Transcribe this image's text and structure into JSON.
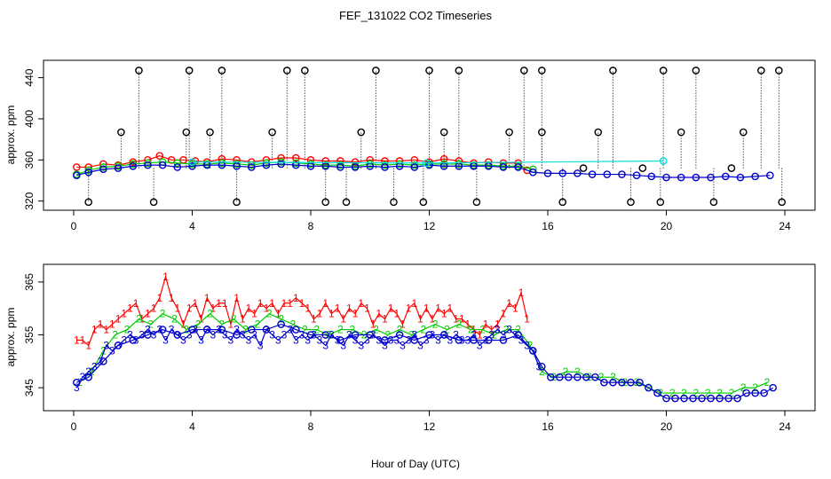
{
  "chart_data": [
    {
      "type": "scatter",
      "title": "FEF_131022  CO2 Timeseries",
      "xlabel": "",
      "ylabel": "approx. ppm",
      "xlim": [
        0,
        24
      ],
      "ylim": [
        318,
        450
      ],
      "x_ticks": [
        0,
        4,
        8,
        12,
        16,
        20,
        24
      ],
      "y_ticks": [
        320,
        360,
        400,
        440
      ],
      "series": [
        {
          "color": "#ff0000",
          "symbol": "circle",
          "x": [
            0.1,
            0.5,
            1,
            1.5,
            2,
            2.5,
            2.9,
            3.3,
            3.7,
            4.1,
            4.5,
            5,
            5.5,
            6,
            6.5,
            7,
            7.5,
            8,
            8.5,
            9,
            9.5,
            10,
            10.5,
            11,
            11.5,
            12,
            12.5,
            13,
            13.5,
            14,
            14.5,
            15,
            15.3
          ],
          "y": [
            353,
            353,
            356,
            355,
            358,
            360,
            364,
            360,
            360,
            359,
            358,
            361,
            360,
            358,
            360,
            362,
            362,
            360,
            359,
            359,
            358,
            360,
            359,
            359,
            360,
            358,
            361,
            359,
            357,
            358,
            357,
            357,
            350
          ]
        },
        {
          "color": "#00cc00",
          "symbol": "circle",
          "x": [
            0.1,
            0.5,
            1,
            1.5,
            2,
            2.5,
            3,
            3.5,
            4,
            4.5,
            5,
            5.5,
            6,
            6.5,
            7,
            7.5,
            8,
            8.5,
            9,
            9.5,
            10,
            10.5,
            11,
            11.5,
            12,
            12.5,
            13,
            13.5,
            14,
            14.5,
            15,
            15.5
          ],
          "y": [
            346,
            350,
            353,
            354,
            356,
            357,
            358,
            357,
            356,
            356,
            357,
            356,
            355,
            357,
            358,
            357,
            356,
            355,
            355,
            354,
            356,
            355,
            356,
            355,
            356,
            356,
            356,
            355,
            355,
            354,
            354,
            351
          ]
        },
        {
          "color": "#0000cc",
          "symbol": "circle",
          "x": [
            0.1,
            0.5,
            1,
            1.5,
            2,
            2.5,
            3,
            3.5,
            4,
            4.5,
            5,
            5.5,
            6,
            6.5,
            7,
            7.5,
            8,
            8.5,
            9,
            9.5,
            10,
            10.5,
            11,
            11.5,
            12,
            12.5,
            13,
            13.5,
            14,
            14.5,
            15,
            15.5,
            16,
            16.5,
            17,
            17.5,
            18,
            18.5,
            19,
            19.5,
            20,
            20.5,
            21,
            21.5,
            22,
            22.5,
            23,
            23.5
          ],
          "y": [
            345,
            348,
            351,
            352,
            354,
            355,
            355,
            353,
            354,
            355,
            355,
            354,
            353,
            355,
            356,
            355,
            354,
            354,
            353,
            353,
            354,
            353,
            354,
            353,
            355,
            354,
            354,
            354,
            354,
            353,
            353,
            348,
            347,
            347,
            347,
            346,
            346,
            346,
            345,
            344,
            343,
            343,
            343,
            343,
            344,
            343,
            344,
            345
          ]
        },
        {
          "color": "#00e0e0",
          "symbol": "circle",
          "x": [
            4,
            11.9,
            19.9
          ],
          "y": [
            358,
            357,
            359
          ]
        },
        {
          "color": "#000000",
          "symbol": "circle",
          "x": [
            0.5,
            1.6,
            2.2,
            2.7,
            3.8,
            3.9,
            4.6,
            5.0,
            5.5,
            6.7,
            7.2,
            7.8,
            8.5,
            9.2,
            9.7,
            10.2,
            10.8,
            11.8,
            12.0,
            12.5,
            13.0,
            13.6,
            14.7,
            15.2,
            15.8,
            15.8,
            16.5,
            17.2,
            17.7,
            18.2,
            18.8,
            19.2,
            19.8,
            19.9,
            20.5,
            21.0,
            21.6,
            22.2,
            22.6,
            23.2,
            23.8,
            23.9
          ],
          "y": [
            319,
            387,
            447,
            319,
            387,
            447,
            387,
            447,
            319,
            387,
            447,
            447,
            319,
            319,
            387,
            447,
            319,
            319,
            447,
            387,
            447,
            319,
            387,
            447,
            447,
            387,
            319,
            352,
            387,
            447,
            319,
            352,
            319,
            447,
            387,
            447,
            319,
            352,
            387,
            447,
            447,
            319
          ]
        }
      ]
    },
    {
      "type": "scatter",
      "title": "",
      "xlabel": "Hour of Day (UTC)",
      "ylabel": "approx. ppm",
      "xlim": [
        0,
        24
      ],
      "ylim": [
        342,
        367
      ],
      "x_ticks": [
        0,
        4,
        8,
        12,
        16,
        20,
        24
      ],
      "y_ticks": [
        345,
        355,
        365
      ],
      "series": [
        {
          "color": "#ff0000",
          "symbol": "1",
          "x": [
            0.1,
            0.3,
            0.5,
            0.7,
            0.9,
            1.1,
            1.3,
            1.5,
            1.7,
            1.9,
            2.1,
            2.3,
            2.5,
            2.7,
            2.9,
            3.1,
            3.3,
            3.5,
            3.7,
            3.9,
            4.1,
            4.3,
            4.5,
            4.7,
            4.9,
            5.1,
            5.3,
            5.5,
            5.7,
            5.9,
            6.1,
            6.3,
            6.5,
            6.7,
            6.9,
            7.1,
            7.3,
            7.5,
            7.7,
            7.9,
            8.1,
            8.3,
            8.5,
            8.7,
            8.9,
            9.1,
            9.3,
            9.5,
            9.7,
            9.9,
            10.1,
            10.3,
            10.5,
            10.7,
            10.9,
            11.1,
            11.3,
            11.5,
            11.7,
            11.9,
            12.1,
            12.3,
            12.5,
            12.7,
            12.9,
            13.1,
            13.3,
            13.5,
            13.7,
            13.9,
            14.1,
            14.3,
            14.5,
            14.7,
            14.9,
            15.1,
            15.3
          ],
          "y": [
            354,
            354,
            353,
            356,
            357,
            356,
            357,
            358,
            359,
            360,
            361,
            358,
            359,
            360,
            362,
            366,
            362,
            360,
            357,
            360,
            361,
            358,
            362,
            360,
            361,
            361,
            357,
            362,
            358,
            360,
            359,
            361,
            360,
            361,
            359,
            361,
            361,
            362,
            361,
            360,
            358,
            359,
            361,
            359,
            360,
            358,
            360,
            359,
            361,
            360,
            357,
            359,
            358,
            360,
            359,
            357,
            360,
            361,
            358,
            360,
            358,
            360,
            359,
            360,
            358,
            358,
            357,
            356,
            355,
            357,
            356,
            357,
            359,
            361,
            360,
            363,
            358
          ]
        },
        {
          "color": "#00cc00",
          "symbol": "2",
          "x": [
            0.2,
            0.6,
            1.0,
            1.4,
            1.8,
            2.2,
            2.6,
            3.0,
            3.4,
            3.8,
            4.2,
            4.6,
            5.0,
            5.4,
            5.8,
            6.2,
            6.6,
            7.0,
            7.4,
            7.8,
            8.2,
            8.6,
            9.0,
            9.4,
            9.8,
            10.2,
            10.6,
            11.0,
            11.4,
            11.8,
            12.2,
            12.6,
            13.0,
            13.4,
            13.8,
            14.2,
            14.6,
            15.0,
            15.4,
            15.8,
            16.2,
            16.6,
            17.0,
            17.4,
            17.8,
            18.2,
            18.6,
            19.0,
            19.4,
            19.8,
            20.2,
            20.6,
            21.0,
            21.4,
            21.8,
            22.2,
            22.6,
            23.0,
            23.4
          ],
          "y": [
            346,
            348,
            352,
            355,
            356,
            358,
            357,
            359,
            358,
            356,
            357,
            359,
            357,
            358,
            356,
            357,
            359,
            358,
            357,
            356,
            356,
            355,
            356,
            356,
            355,
            356,
            355,
            356,
            355,
            356,
            357,
            356,
            357,
            356,
            356,
            355,
            356,
            356,
            353,
            348,
            347,
            348,
            348,
            347,
            347,
            347,
            346,
            346,
            345,
            344,
            344,
            344,
            344,
            344,
            344,
            344,
            345,
            345,
            346
          ]
        },
        {
          "color": "#0000cc",
          "symbol": "3",
          "x": [
            0.1,
            0.3,
            0.5,
            0.7,
            0.9,
            1.1,
            1.3,
            1.5,
            1.7,
            1.9,
            2.1,
            2.3,
            2.5,
            2.7,
            2.9,
            3.1,
            3.3,
            3.5,
            3.7,
            3.9,
            4.1,
            4.3,
            4.5,
            4.7,
            4.9,
            5.1,
            5.3,
            5.5,
            5.7,
            5.9,
            6.1,
            6.3,
            6.5,
            6.7,
            6.9,
            7.1,
            7.3,
            7.5,
            7.7,
            7.9,
            8.1,
            8.3,
            8.5,
            8.7,
            8.9,
            9.1,
            9.3,
            9.5,
            9.7,
            9.9,
            10.1,
            10.3,
            10.5,
            10.7,
            10.9,
            11.1,
            11.3,
            11.5,
            11.7,
            11.9,
            12.1,
            12.3,
            12.5,
            12.7,
            12.9,
            13.1,
            13.3,
            13.5,
            13.7,
            13.9,
            14.1,
            14.3,
            14.5,
            14.7,
            14.9,
            15.1,
            15.3,
            15.5,
            15.7
          ],
          "y": [
            345,
            347,
            348,
            349,
            350,
            353,
            352,
            353,
            354,
            355,
            354,
            355,
            356,
            355,
            356,
            354,
            356,
            355,
            354,
            355,
            356,
            354,
            356,
            355,
            356,
            355,
            354,
            356,
            355,
            354,
            355,
            353,
            356,
            355,
            354,
            355,
            356,
            354,
            355,
            354,
            355,
            354,
            353,
            355,
            354,
            353,
            355,
            354,
            353,
            354,
            355,
            354,
            353,
            354,
            354,
            353,
            354,
            355,
            353,
            354,
            355,
            354,
            355,
            354,
            355,
            354,
            354,
            355,
            353,
            354,
            355,
            356,
            355,
            356,
            355,
            354,
            353,
            352,
            349
          ]
        },
        {
          "color": "#0000cc",
          "symbol": "circle",
          "x": [
            0.1,
            0.5,
            1.0,
            1.5,
            2.0,
            2.5,
            3.0,
            3.5,
            4.0,
            4.5,
            5.0,
            5.5,
            6.0,
            6.5,
            7.0,
            7.5,
            8.0,
            8.5,
            9.0,
            9.5,
            10.0,
            10.5,
            11.0,
            11.5,
            12.0,
            12.5,
            13.0,
            13.5,
            14.0,
            14.5,
            15.0,
            15.5,
            15.8,
            16.1,
            16.4,
            16.7,
            17.0,
            17.3,
            17.6,
            17.9,
            18.2,
            18.5,
            18.8,
            19.1,
            19.4,
            19.7,
            20.0,
            20.3,
            20.6,
            20.9,
            21.2,
            21.5,
            21.8,
            22.1,
            22.4,
            22.7,
            23.0,
            23.3,
            23.6
          ],
          "y": [
            346,
            347,
            350,
            353,
            354,
            355,
            356,
            355,
            356,
            356,
            356,
            355,
            356,
            356,
            357,
            356,
            355,
            355,
            354,
            355,
            355,
            354,
            355,
            354,
            355,
            355,
            354,
            354,
            354,
            354,
            355,
            352,
            349,
            347,
            347,
            347,
            347,
            347,
            347,
            346,
            346,
            346,
            346,
            346,
            345,
            344,
            343,
            343,
            343,
            343,
            343,
            343,
            343,
            343,
            343,
            344,
            344,
            344,
            345
          ]
        }
      ]
    }
  ]
}
